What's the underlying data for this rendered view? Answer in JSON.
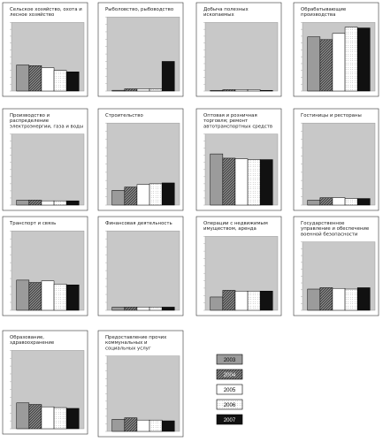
{
  "colors": {
    "plot_bg": "#c8c8c8",
    "frame": "#9a9a9a",
    "bar_stroke": "#000000"
  },
  "legend": {
    "items": [
      {
        "label": "2003",
        "fill": "#9b9b9b",
        "pattern": "none",
        "text_color": "#000000"
      },
      {
        "label": "2004",
        "fill": "#4a4a4a",
        "pattern": "hatch",
        "text_color": "#ffffff"
      },
      {
        "label": "2005",
        "fill": "#ffffff",
        "pattern": "none",
        "text_color": "#000000"
      },
      {
        "label": "2006",
        "fill": "#ffffff",
        "pattern": "dots",
        "text_color": "#000000"
      },
      {
        "label": "2007",
        "fill": "#111111",
        "pattern": "none",
        "text_color": "#ffffff"
      }
    ]
  },
  "chart_data": [
    {
      "type": "bar",
      "title": "Сельское хозяйство, охота и лесное хозяйство",
      "categories": [
        "2003",
        "2004",
        "2005",
        "2006",
        "2007"
      ],
      "values": [
        38,
        37,
        34,
        30,
        28
      ],
      "ylim": [
        0,
        100
      ]
    },
    {
      "type": "bar",
      "title": "Рыболовство, рыбоводство",
      "categories": [
        "2003",
        "2004",
        "2005",
        "2006",
        "2007"
      ],
      "values": [
        1,
        3,
        3,
        3,
        40
      ],
      "ylim": [
        0,
        100
      ]
    },
    {
      "type": "bar",
      "title": "Добыча полезных ископаемых",
      "categories": [
        "2003",
        "2004",
        "2005",
        "2006",
        "2007"
      ],
      "values": [
        1,
        2,
        2,
        2,
        1
      ],
      "ylim": [
        0,
        100
      ]
    },
    {
      "type": "bar",
      "title": "Обрабатывающие производства",
      "categories": [
        "2003",
        "2004",
        "2005",
        "2006",
        "2007"
      ],
      "values": [
        79,
        75,
        84,
        93,
        92
      ],
      "ylim": [
        0,
        100
      ]
    },
    {
      "type": "bar",
      "title": "Производство и распределение электроэнергии, газа и воды",
      "categories": [
        "2003",
        "2004",
        "2005",
        "2006",
        "2007"
      ],
      "values": [
        7,
        7,
        6,
        6,
        6
      ],
      "ylim": [
        0,
        100
      ]
    },
    {
      "type": "bar",
      "title": "Строительство",
      "categories": [
        "2003",
        "2004",
        "2005",
        "2006",
        "2007"
      ],
      "values": [
        18,
        22,
        25,
        26,
        27
      ],
      "ylim": [
        0,
        100
      ]
    },
    {
      "type": "bar",
      "title": "Оптовая и розничная торговля; ремонт автотранспортных средств",
      "categories": [
        "2003",
        "2004",
        "2005",
        "2006",
        "2007"
      ],
      "values": [
        72,
        66,
        65,
        64,
        64
      ],
      "ylim": [
        0,
        100
      ]
    },
    {
      "type": "bar",
      "title": "Гостиницы и рестораны",
      "categories": [
        "2003",
        "2004",
        "2005",
        "2006",
        "2007"
      ],
      "values": [
        6,
        9,
        9,
        8,
        8
      ],
      "ylim": [
        0,
        100
      ]
    },
    {
      "type": "bar",
      "title": "Транспорт и связь",
      "categories": [
        "2003",
        "2004",
        "2005",
        "2006",
        "2007"
      ],
      "values": [
        38,
        35,
        37,
        33,
        32
      ],
      "ylim": [
        0,
        100
      ]
    },
    {
      "type": "bar",
      "title": "Финансовая деятельность",
      "categories": [
        "2003",
        "2004",
        "2005",
        "2006",
        "2007"
      ],
      "values": [
        4,
        4,
        4,
        4,
        4
      ],
      "ylim": [
        0,
        100
      ]
    },
    {
      "type": "bar",
      "title": "Операции с недвижимым имуществом, аренда",
      "categories": [
        "2003",
        "2004",
        "2005",
        "2006",
        "2007"
      ],
      "values": [
        18,
        27,
        26,
        26,
        26
      ],
      "ylim": [
        0,
        100
      ]
    },
    {
      "type": "bar",
      "title": "Государственное управление и обеспечение военной безопасности",
      "categories": [
        "2003",
        "2004",
        "2005",
        "2006",
        "2007"
      ],
      "values": [
        31,
        33,
        32,
        31,
        33
      ],
      "ylim": [
        0,
        100
      ]
    },
    {
      "type": "bar",
      "title": "Образование, здравоохранение",
      "categories": [
        "2003",
        "2004",
        "2005",
        "2006",
        "2007"
      ],
      "values": [
        33,
        31,
        28,
        27,
        26
      ],
      "ylim": [
        0,
        100
      ]
    },
    {
      "type": "bar",
      "title": "Предоставление прочих коммунальных и социальных услуг",
      "categories": [
        "2003",
        "2004",
        "2005",
        "2006",
        "2007"
      ],
      "values": [
        16,
        18,
        15,
        15,
        14
      ],
      "ylim": [
        0,
        100
      ]
    }
  ]
}
